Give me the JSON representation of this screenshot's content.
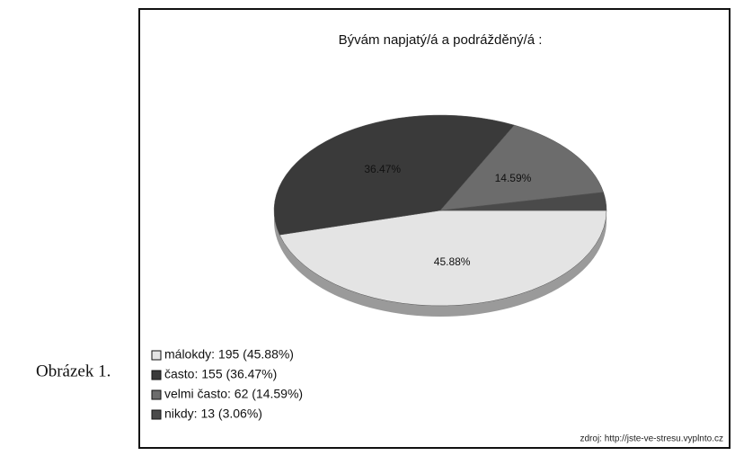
{
  "chart_data": {
    "type": "pie",
    "title": "Bývám napjatý/á a podrážděný/á :",
    "categories": [
      "málokdy: 195 (45.88%)",
      "často: 155 (36.47%)",
      "velmi často: 62 (14.59%)",
      "nikdy: 13 (3.06%)"
    ],
    "values": [
      45.88,
      36.47,
      14.59,
      3.06
    ],
    "value_labels": [
      "45.88%",
      "36.47%",
      "14.59%",
      null
    ],
    "colors": [
      "#e4e4e4",
      "#3a3a3a",
      "#6c6c6c",
      "#4a4a4a"
    ],
    "caption": "Obrázek 1.",
    "source": "zdroj: http://jste-ve-stresu.vyplnto.cz"
  }
}
